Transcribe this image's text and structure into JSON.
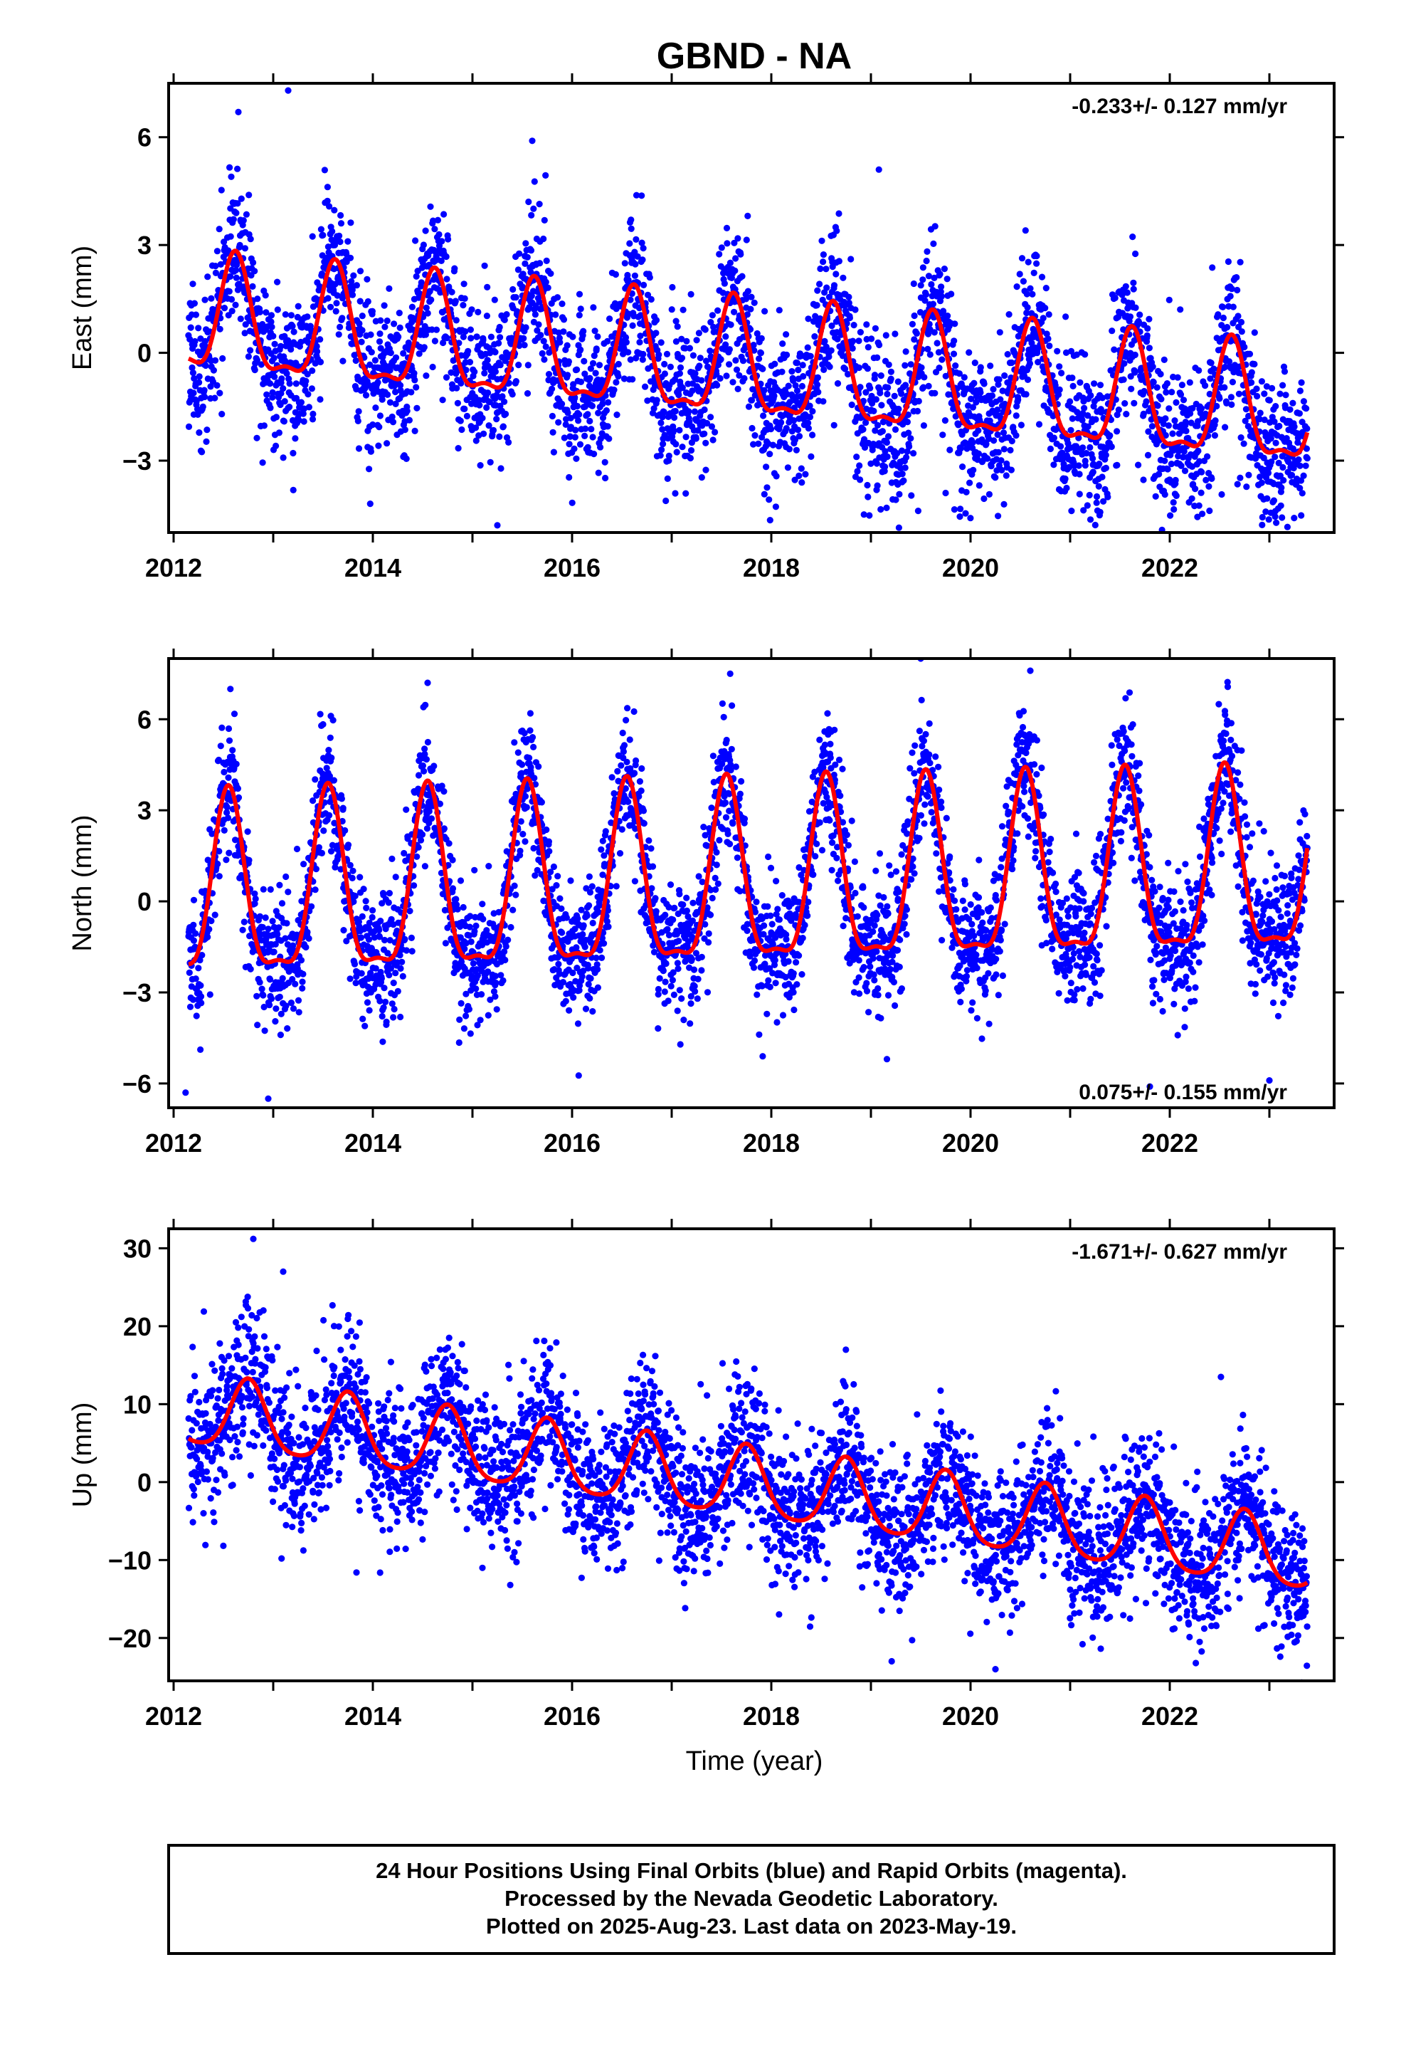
{
  "title": "GBND - NA",
  "xlabel": "Time (year)",
  "colors": {
    "data": "#0000ff",
    "fit": "#ff0000",
    "frame": "#000000"
  },
  "footer": {
    "line1": "24 Hour Positions Using Final Orbits (blue) and Rapid Orbits (magenta).",
    "line2": "Processed by the Nevada Geodetic Laboratory.",
    "line3": "Plotted on 2025-Aug-23. Last data on 2023-May-19."
  },
  "chart_data": [
    {
      "type": "scatter",
      "component": "east",
      "ylabel": "East (mm)",
      "rate_text": "-0.233+/- 0.127 mm/yr",
      "rate_position": "top-right",
      "xlim": [
        2011.95,
        2023.65
      ],
      "ylim": [
        -5,
        7.5
      ],
      "xticks": [
        2012,
        2014,
        2016,
        2018,
        2020,
        2022
      ],
      "yticks": [
        -3,
        0,
        3,
        6
      ],
      "ytick_labels": [
        "−3",
        "0",
        "3",
        "6"
      ],
      "grid": false,
      "series": [
        {
          "role": "daily positions",
          "color": "#0000ff",
          "style": "dots",
          "x_range": [
            2012.15,
            2023.38
          ],
          "n_points_approx": 3900,
          "model": {
            "offset": 0.85,
            "rate": -0.233,
            "annual_amp": 1.55,
            "annual_peak": 0.62,
            "semiannual_amp": 0.55,
            "scatter_sd": 1.05
          },
          "outliers": [
            [
              2013.15,
              7.3
            ],
            [
              2012.65,
              6.7
            ],
            [
              2015.6,
              5.9
            ],
            [
              2019.08,
              5.1
            ],
            [
              2015.25,
              -4.8
            ],
            [
              2019.75,
              -3.9
            ],
            [
              2021.35,
              -3.8
            ]
          ]
        },
        {
          "role": "seasonal + trend fit",
          "color": "#ff0000",
          "style": "line",
          "x_range": [
            2012.15,
            2023.38
          ],
          "model": {
            "offset": 0.85,
            "rate": -0.233,
            "annual_amp": 1.55,
            "annual_peak": 0.62,
            "semiannual_amp": 0.55
          }
        }
      ]
    },
    {
      "type": "scatter",
      "component": "north",
      "ylabel": "North (mm)",
      "rate_text": "0.075+/- 0.155 mm/yr",
      "rate_position": "bottom-right",
      "xlim": [
        2011.95,
        2023.65
      ],
      "ylim": [
        -6.8,
        8
      ],
      "xticks": [
        2012,
        2014,
        2016,
        2018,
        2020,
        2022
      ],
      "yticks": [
        -6,
        -3,
        0,
        3,
        6
      ],
      "ytick_labels": [
        "−6",
        "−3",
        "0",
        "3",
        "6"
      ],
      "grid": false,
      "series": [
        {
          "role": "daily positions",
          "color": "#0000ff",
          "style": "dots",
          "x_range": [
            2012.15,
            2023.38
          ],
          "n_points_approx": 3900,
          "model": {
            "offset": 0.0,
            "rate": 0.075,
            "annual_amp": 2.9,
            "annual_peak": 0.55,
            "semiannual_amp": 0.9,
            "scatter_sd": 1.05
          },
          "outliers": [
            [
              2019.5,
              8.0
            ],
            [
              2020.6,
              7.6
            ],
            [
              2014.55,
              7.2
            ],
            [
              2012.12,
              -6.3
            ],
            [
              2012.95,
              -6.5
            ],
            [
              2021.8,
              -6.1
            ],
            [
              2023.0,
              -5.9
            ]
          ]
        },
        {
          "role": "seasonal + trend fit",
          "color": "#ff0000",
          "style": "line",
          "x_range": [
            2012.15,
            2023.38
          ],
          "model": {
            "offset": 0.0,
            "rate": 0.075,
            "annual_amp": 2.9,
            "annual_peak": 0.55,
            "semiannual_amp": 0.9
          }
        }
      ]
    },
    {
      "type": "scatter",
      "component": "up",
      "ylabel": "Up (mm)",
      "rate_text": "-1.671+/- 0.627 mm/yr",
      "rate_position": "top-right",
      "xlim": [
        2011.95,
        2023.65
      ],
      "ylim": [
        -25.5,
        32.5
      ],
      "xticks": [
        2012,
        2014,
        2016,
        2018,
        2020,
        2022
      ],
      "yticks": [
        -20,
        -10,
        0,
        10,
        20,
        30
      ],
      "ytick_labels": [
        "−20",
        "−10",
        "0",
        "10",
        "20",
        "30"
      ],
      "grid": false,
      "series": [
        {
          "role": "daily positions",
          "color": "#0000ff",
          "style": "dots",
          "x_range": [
            2012.15,
            2023.38
          ],
          "n_points_approx": 3900,
          "model": {
            "offset": 9.0,
            "rate": -1.671,
            "annual_amp": 4.5,
            "annual_peak": 0.75,
            "semiannual_amp": 0.8,
            "scatter_sd": 4.6
          },
          "outliers": [
            [
              2012.8,
              31.2
            ],
            [
              2013.1,
              27.0
            ],
            [
              2012.3,
              -4.0
            ],
            [
              2020.25,
              -24.0
            ],
            [
              2022.3,
              -20.5
            ],
            [
              2015.1,
              -11.0
            ]
          ]
        },
        {
          "role": "seasonal + trend fit",
          "color": "#ff0000",
          "style": "line",
          "x_range": [
            2012.15,
            2023.38
          ],
          "model": {
            "offset": 9.0,
            "rate": -1.671,
            "annual_amp": 4.5,
            "annual_peak": 0.75,
            "semiannual_amp": 0.8
          }
        }
      ]
    }
  ]
}
